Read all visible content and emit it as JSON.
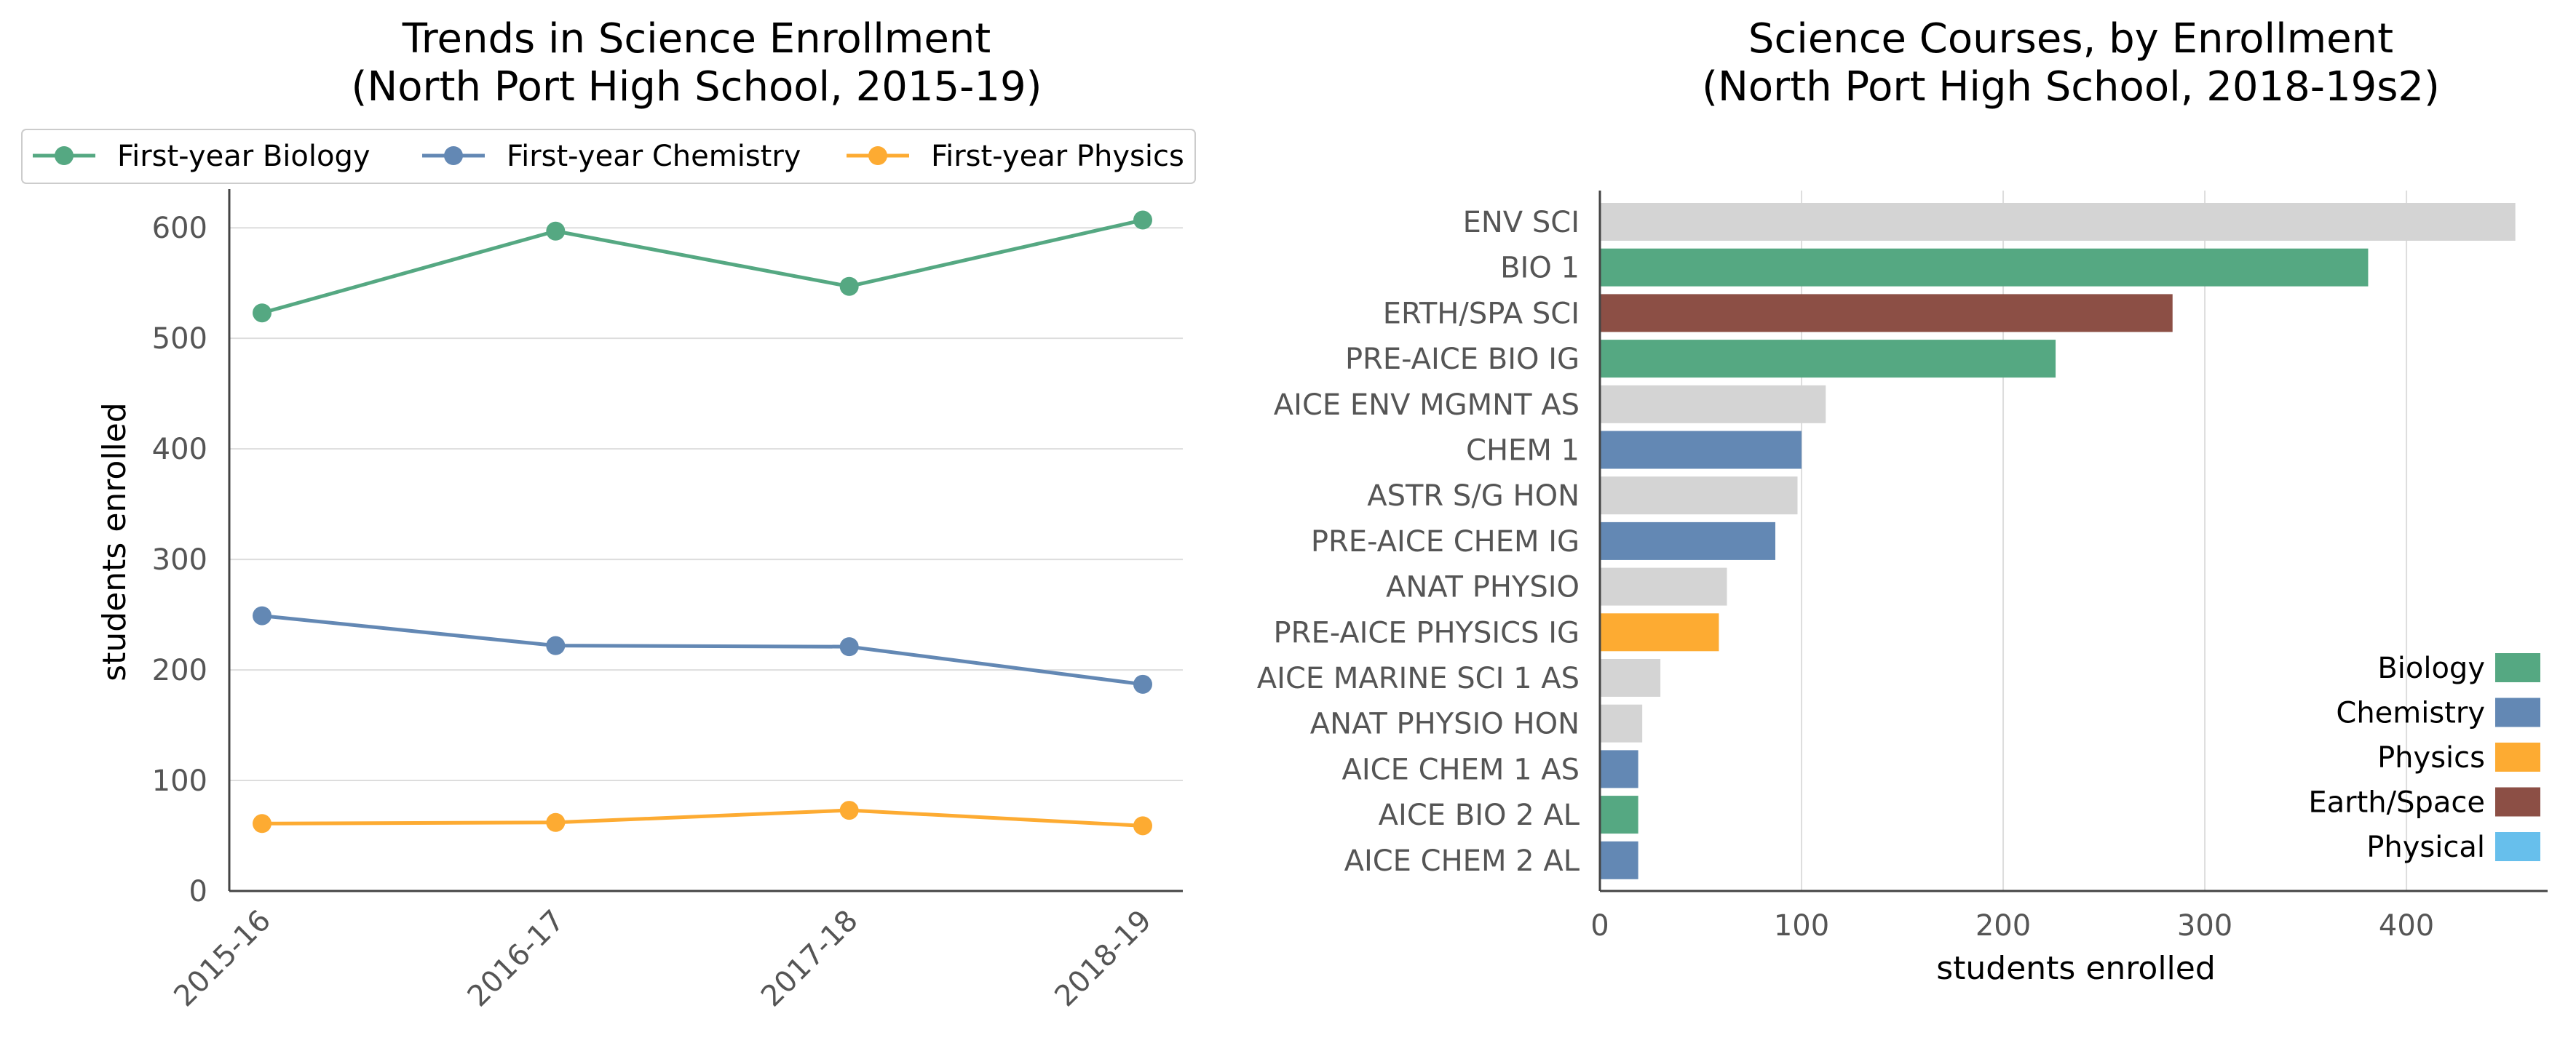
{
  "colors": {
    "biology": "#55a882",
    "chemistry": "#6388b4",
    "physics": "#fdab32",
    "earth_space": "#8c4f45",
    "physical": "#67bfec",
    "other": "#d4d4d4",
    "grid": "#dddddd",
    "axis": "#444444"
  },
  "chart_data": [
    {
      "type": "line",
      "title": "Trends in Science Enrollment",
      "subtitle": "(North Port High School, 2015-19)",
      "xlabel": "",
      "ylabel": "students enrolled",
      "categories": [
        "2015-16",
        "2016-17",
        "2017-18",
        "2018-19"
      ],
      "yticks": [
        "0",
        "100",
        "200",
        "300",
        "400",
        "500",
        "600"
      ],
      "ylim": [
        0,
        635
      ],
      "grid": "horizontal",
      "legend": "top",
      "series": [
        {
          "name": "First-year Biology",
          "color_key": "biology",
          "values": [
            523,
            597,
            547,
            607
          ]
        },
        {
          "name": "First-year Chemistry",
          "color_key": "chemistry",
          "values": [
            249,
            222,
            221,
            187
          ]
        },
        {
          "name": "First-year Physics",
          "color_key": "physics",
          "values": [
            61,
            62,
            73,
            59
          ]
        }
      ]
    },
    {
      "type": "bar",
      "orientation": "horizontal",
      "title": "Science Courses, by Enrollment",
      "subtitle": "(North Port High School, 2018-19s2)",
      "xlabel": "students enrolled",
      "ylabel": "",
      "xticks": [
        "0",
        "100",
        "200",
        "300",
        "400"
      ],
      "xlim": [
        0,
        470
      ],
      "grid": "vertical",
      "legend": "bottom-right",
      "categories": [
        "ENV SCI",
        "BIO 1",
        "ERTH/SPA SCI",
        "PRE-AICE BIO IG",
        "AICE ENV MGMNT AS",
        "CHEM 1",
        "ASTR S/G HON",
        "PRE-AICE CHEM IG",
        "ANAT PHYSIO",
        "PRE-AICE PHYSICS IG",
        "AICE MARINE SCI 1 AS",
        "ANAT PHYSIO HON",
        "AICE CHEM 1 AS",
        "AICE BIO 2 AL",
        "AICE CHEM 2 AL"
      ],
      "values": [
        454,
        381,
        284,
        226,
        112,
        100,
        98,
        87,
        63,
        59,
        30,
        21,
        19,
        19,
        19
      ],
      "color_keys": [
        "other",
        "biology",
        "earth_space",
        "biology",
        "other",
        "chemistry",
        "other",
        "chemistry",
        "other",
        "physics",
        "other",
        "other",
        "chemistry",
        "biology",
        "chemistry"
      ],
      "legend_entries": [
        {
          "label": "Biology",
          "color_key": "biology"
        },
        {
          "label": "Chemistry",
          "color_key": "chemistry"
        },
        {
          "label": "Physics",
          "color_key": "physics"
        },
        {
          "label": "Earth/Space",
          "color_key": "earth_space"
        },
        {
          "label": "Physical",
          "color_key": "physical"
        }
      ]
    }
  ]
}
